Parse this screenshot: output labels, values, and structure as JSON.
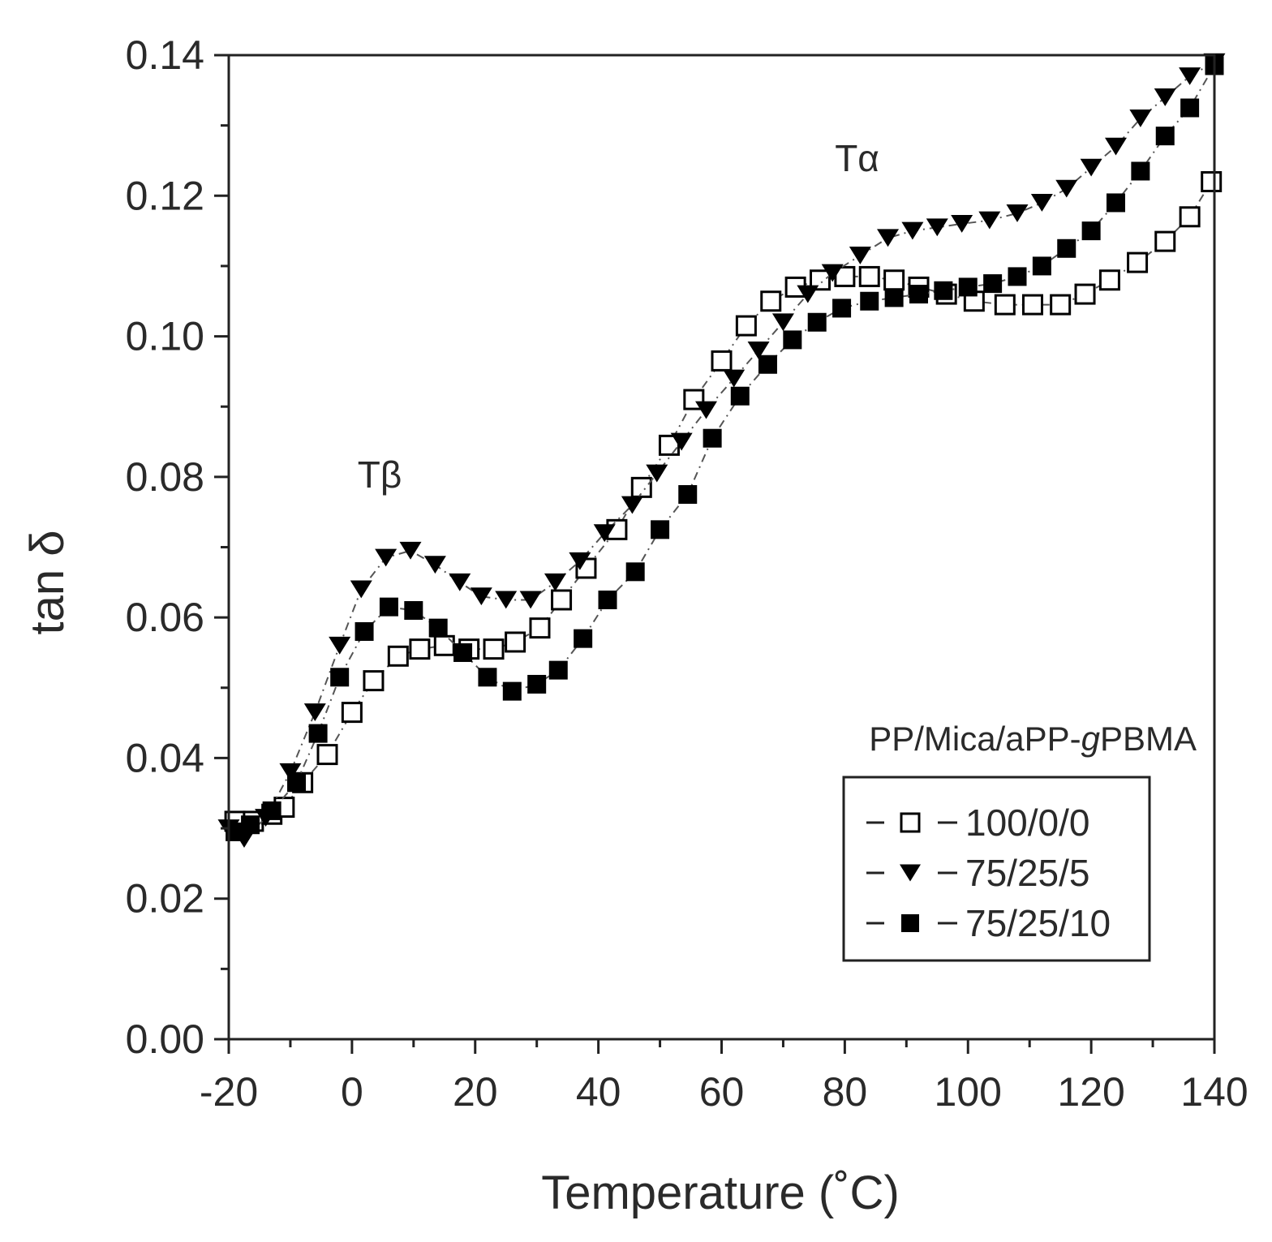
{
  "chart_data": {
    "type": "scatter",
    "title": "",
    "xlabel": "Temperature (˚C)",
    "ylabel": "tan δ",
    "xlim": [
      -20,
      140
    ],
    "ylim": [
      0.0,
      0.14
    ],
    "xticks": [
      -20,
      0,
      20,
      40,
      60,
      80,
      100,
      120,
      140
    ],
    "xtick_labels": [
      "-20",
      "0",
      "20",
      "40",
      "60",
      "80",
      "100",
      "120",
      "140"
    ],
    "yticks": [
      0.0,
      0.02,
      0.04,
      0.06,
      0.08,
      0.1,
      0.12,
      0.14
    ],
    "ytick_labels": [
      "0.00",
      "0.02",
      "0.04",
      "0.06",
      "0.08",
      "0.10",
      "0.12",
      "0.14"
    ],
    "grid": false,
    "legend": {
      "title": "PP/Mica/aPP-",
      "title_italic": "g",
      "title_suffix": "PBMA",
      "placement": "lower-right"
    },
    "annotations": [
      {
        "text": "Tβ",
        "x": 4.5,
        "y": 0.0785
      },
      {
        "text": "Tα",
        "x": 82,
        "y": 0.1235
      }
    ],
    "series": [
      {
        "name": "100/0/0",
        "marker": "open-square",
        "color": "#000000",
        "x": [
          -19,
          -16,
          -13,
          -11,
          -8,
          -4,
          0,
          3.5,
          7.5,
          11,
          15,
          19,
          23,
          26.5,
          30.5,
          34,
          38,
          43,
          47,
          51.5,
          55.5,
          60,
          64,
          68,
          72,
          76,
          80,
          84,
          88,
          92,
          96.5,
          101,
          106,
          110.5,
          115,
          119,
          123,
          127.5,
          132,
          136,
          139.5
        ],
        "values": [
          0.031,
          0.031,
          0.032,
          0.033,
          0.0365,
          0.0405,
          0.0465,
          0.051,
          0.0545,
          0.0555,
          0.056,
          0.0555,
          0.0555,
          0.0565,
          0.0585,
          0.0625,
          0.067,
          0.0725,
          0.0785,
          0.0845,
          0.091,
          0.0965,
          0.1015,
          0.105,
          0.107,
          0.108,
          0.1085,
          0.1085,
          0.108,
          0.107,
          0.106,
          0.105,
          0.1045,
          0.1045,
          0.1045,
          0.106,
          0.108,
          0.1105,
          0.1135,
          0.117,
          0.122
        ]
      },
      {
        "name": "75/25/5",
        "marker": "filled-down-triangle",
        "color": "#000000",
        "x": [
          -20,
          -17.5,
          -14,
          -10,
          -6,
          -2,
          1.5,
          5.5,
          9.5,
          13.5,
          17.5,
          21,
          25,
          29,
          33,
          37,
          41,
          45.5,
          49.5,
          53.5,
          57.5,
          62,
          66,
          70,
          74,
          78,
          82.5,
          87,
          91,
          95,
          99,
          103.5,
          108,
          112,
          116,
          120,
          124,
          128,
          132,
          136,
          140
        ],
        "values": [
          0.03,
          0.0285,
          0.0315,
          0.038,
          0.0465,
          0.056,
          0.064,
          0.0685,
          0.0695,
          0.0675,
          0.065,
          0.063,
          0.0625,
          0.0625,
          0.065,
          0.068,
          0.072,
          0.076,
          0.0805,
          0.085,
          0.0895,
          0.094,
          0.098,
          0.102,
          0.106,
          0.109,
          0.1115,
          0.114,
          0.115,
          0.1155,
          0.116,
          0.1165,
          0.1175,
          0.119,
          0.121,
          0.124,
          0.127,
          0.131,
          0.134,
          0.137,
          0.139
        ]
      },
      {
        "name": "75/25/10",
        "marker": "filled-square",
        "color": "#000000",
        "x": [
          -19,
          -16.5,
          -13,
          -9,
          -5.5,
          -2,
          2,
          6,
          10,
          14,
          18,
          22,
          26,
          30,
          33.5,
          37.5,
          41.5,
          46,
          50,
          54.5,
          58.5,
          63,
          67.5,
          71.5,
          75.5,
          79.5,
          84,
          88,
          92,
          96,
          100,
          104,
          108,
          112,
          116,
          120,
          124,
          128,
          132,
          136,
          140
        ],
        "values": [
          0.0295,
          0.0305,
          0.0325,
          0.0365,
          0.0435,
          0.0515,
          0.058,
          0.0615,
          0.061,
          0.0585,
          0.055,
          0.0515,
          0.0495,
          0.0505,
          0.0525,
          0.057,
          0.0625,
          0.0665,
          0.0725,
          0.0775,
          0.0855,
          0.0915,
          0.096,
          0.0995,
          0.102,
          0.104,
          0.105,
          0.1055,
          0.106,
          0.1065,
          0.107,
          0.1075,
          0.1085,
          0.11,
          0.1125,
          0.115,
          0.119,
          0.1235,
          0.1285,
          0.1325,
          0.1385
        ]
      }
    ]
  }
}
